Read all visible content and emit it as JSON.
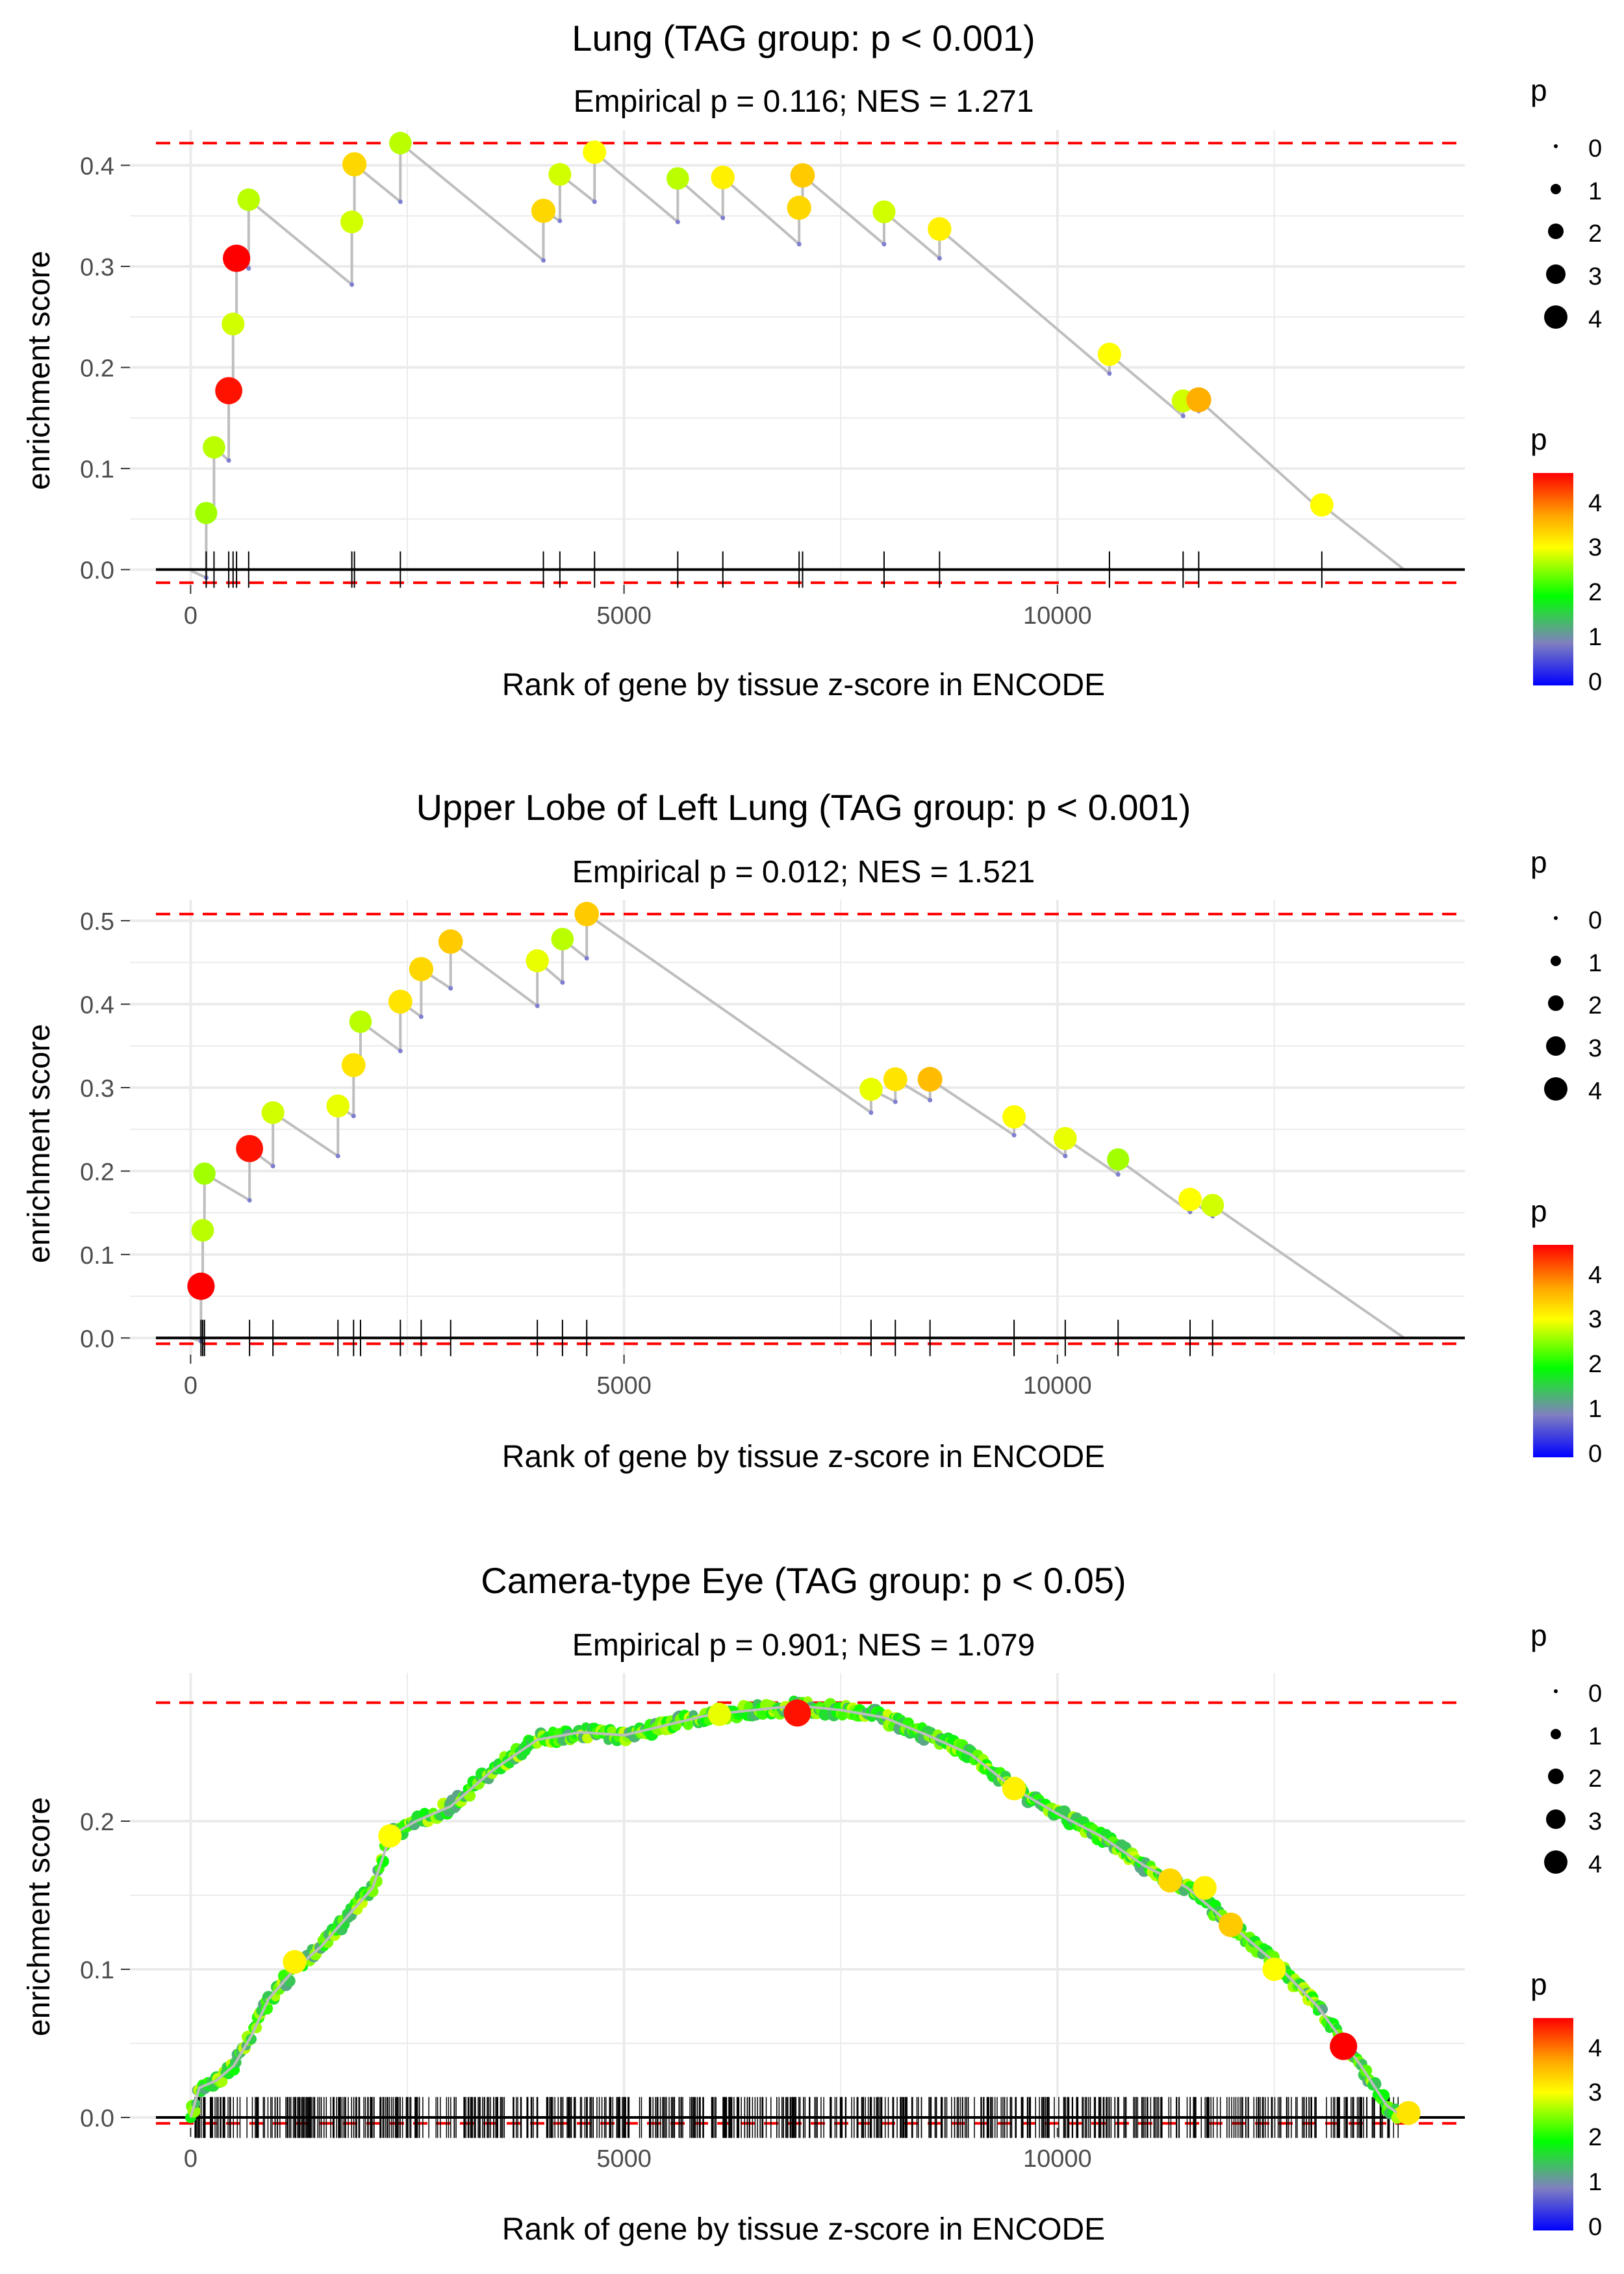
{
  "chart_data": [
    {
      "type": "scatter",
      "title": "Lung (TAG group: p < 0.001)",
      "subtitle": "Empirical p = 0.116; NES = 1.271",
      "xlabel": "Rank of gene by tissue z-score in ENCODE",
      "ylabel": "enrichment score",
      "xlim": [
        -700,
        14700
      ],
      "ylim": [
        -0.015,
        0.435
      ],
      "x_ticks": [
        0,
        5000,
        10000
      ],
      "x_tick_labels": [
        "0",
        "5000",
        "10000"
      ],
      "y_ticks": [
        0.0,
        0.1,
        0.2,
        0.3,
        0.4
      ],
      "y_tick_labels": [
        "0.0",
        "0.1",
        "0.2",
        "0.3",
        "0.4"
      ],
      "max_es": 0.422,
      "min_es": -0.013,
      "n_genes": 14000,
      "start_es": -0.001,
      "steps": [
        {
          "rank": 180,
          "pre": -0.008,
          "es": 0.056,
          "p": 2.6
        },
        {
          "rank": 270,
          "pre": 0.052,
          "es": 0.121,
          "p": 2.7
        },
        {
          "rank": 440,
          "pre": 0.108,
          "es": 0.177,
          "p": 4.5
        },
        {
          "rank": 490,
          "pre": 0.175,
          "es": 0.243,
          "p": 2.8
        },
        {
          "rank": 530,
          "pre": 0.24,
          "es": 0.308,
          "p": 4.6
        },
        {
          "rank": 670,
          "pre": 0.298,
          "es": 0.366,
          "p": 2.7
        },
        {
          "rank": 1860,
          "pre": 0.282,
          "es": 0.344,
          "p": 2.8
        },
        {
          "rank": 1890,
          "pre": 0.34,
          "es": 0.401,
          "p": 3.3
        },
        {
          "rank": 2420,
          "pre": 0.364,
          "es": 0.422,
          "p": 2.7
        },
        {
          "rank": 4070,
          "pre": 0.306,
          "es": 0.355,
          "p": 3.3
        },
        {
          "rank": 4260,
          "pre": 0.345,
          "es": 0.391,
          "p": 2.8
        },
        {
          "rank": 4660,
          "pre": 0.364,
          "es": 0.413,
          "p": 3.0
        },
        {
          "rank": 5620,
          "pre": 0.344,
          "es": 0.387,
          "p": 2.7
        },
        {
          "rank": 6140,
          "pre": 0.348,
          "es": 0.388,
          "p": 3.1
        },
        {
          "rank": 7020,
          "pre": 0.322,
          "es": 0.358,
          "p": 3.3
        },
        {
          "rank": 7060,
          "pre": 0.355,
          "es": 0.39,
          "p": 3.4
        },
        {
          "rank": 8000,
          "pre": 0.322,
          "es": 0.354,
          "p": 2.8
        },
        {
          "rank": 8640,
          "pre": 0.308,
          "es": 0.337,
          "p": 3.1
        },
        {
          "rank": 10600,
          "pre": 0.194,
          "es": 0.213,
          "p": 3.0
        },
        {
          "rank": 11450,
          "pre": 0.152,
          "es": 0.167,
          "p": 2.8
        },
        {
          "rank": 11630,
          "pre": 0.157,
          "es": 0.168,
          "p": 3.6
        },
        {
          "rank": 13050,
          "pre": 0.058,
          "es": 0.064,
          "p": 3.0
        }
      ],
      "gene_ranks": [
        180,
        270,
        440,
        490,
        530,
        670,
        1860,
        1890,
        2420,
        4070,
        4260,
        4660,
        5620,
        6140,
        7020,
        7060,
        8000,
        8640,
        10600,
        11450,
        11630,
        13050
      ],
      "legend_size": {
        "title": "p",
        "values": [
          "0",
          "1",
          "2",
          "3",
          "4"
        ]
      },
      "legend_color": {
        "title": "p",
        "ticks": [
          "0",
          "1",
          "2",
          "3",
          "4"
        ],
        "range": [
          0,
          4.6
        ]
      }
    },
    {
      "type": "scatter",
      "title": "Upper Lobe of Left Lung (TAG group: p < 0.001)",
      "subtitle": "Empirical p = 0.012; NES = 1.521",
      "xlabel": "Rank of gene by tissue z-score in ENCODE",
      "ylabel": "enrichment score",
      "xlim": [
        -700,
        14700
      ],
      "ylim": [
        -0.02,
        0.525
      ],
      "x_ticks": [
        0,
        5000,
        10000
      ],
      "x_tick_labels": [
        "0",
        "5000",
        "10000"
      ],
      "y_ticks": [
        0.0,
        0.1,
        0.2,
        0.3,
        0.4,
        0.5
      ],
      "y_tick_labels": [
        "0.0",
        "0.1",
        "0.2",
        "0.3",
        "0.4",
        "0.5"
      ],
      "max_es": 0.508,
      "min_es": -0.007,
      "n_genes": 14000,
      "start_es": 0.0,
      "steps": [
        {
          "rank": 120,
          "pre": -0.004,
          "es": 0.062,
          "p": 4.6
        },
        {
          "rank": 140,
          "pre": 0.06,
          "es": 0.129,
          "p": 2.7
        },
        {
          "rank": 160,
          "pre": 0.128,
          "es": 0.197,
          "p": 2.6
        },
        {
          "rank": 680,
          "pre": 0.165,
          "es": 0.227,
          "p": 4.5
        },
        {
          "rank": 950,
          "pre": 0.206,
          "es": 0.27,
          "p": 2.8
        },
        {
          "rank": 1700,
          "pre": 0.218,
          "es": 0.278,
          "p": 2.9
        },
        {
          "rank": 1880,
          "pre": 0.266,
          "es": 0.327,
          "p": 3.2
        },
        {
          "rank": 1960,
          "pre": 0.32,
          "es": 0.379,
          "p": 2.7
        },
        {
          "rank": 2420,
          "pre": 0.344,
          "es": 0.403,
          "p": 3.2
        },
        {
          "rank": 2660,
          "pre": 0.385,
          "es": 0.442,
          "p": 3.3
        },
        {
          "rank": 3000,
          "pre": 0.419,
          "es": 0.475,
          "p": 3.4
        },
        {
          "rank": 4000,
          "pre": 0.398,
          "es": 0.452,
          "p": 2.9
        },
        {
          "rank": 4290,
          "pre": 0.426,
          "es": 0.478,
          "p": 2.7
        },
        {
          "rank": 4570,
          "pre": 0.455,
          "es": 0.508,
          "p": 3.4
        },
        {
          "rank": 7850,
          "pre": 0.27,
          "es": 0.298,
          "p": 2.9
        },
        {
          "rank": 8130,
          "pre": 0.283,
          "es": 0.31,
          "p": 3.2
        },
        {
          "rank": 8530,
          "pre": 0.285,
          "es": 0.31,
          "p": 3.5
        },
        {
          "rank": 9500,
          "pre": 0.243,
          "es": 0.265,
          "p": 3.0
        },
        {
          "rank": 10090,
          "pre": 0.218,
          "es": 0.239,
          "p": 2.9
        },
        {
          "rank": 10700,
          "pre": 0.196,
          "es": 0.214,
          "p": 2.6
        },
        {
          "rank": 11530,
          "pre": 0.151,
          "es": 0.166,
          "p": 3.0
        },
        {
          "rank": 11790,
          "pre": 0.146,
          "es": 0.159,
          "p": 2.8
        }
      ],
      "gene_ranks": [
        120,
        140,
        160,
        680,
        950,
        1700,
        1880,
        1960,
        2420,
        2660,
        3000,
        4000,
        4290,
        4570,
        7850,
        8130,
        8530,
        9500,
        10090,
        10700,
        11530,
        11790
      ],
      "legend_size": {
        "title": "p",
        "values": [
          "0",
          "1",
          "2",
          "3",
          "4"
        ]
      },
      "legend_color": {
        "title": "p",
        "ticks": [
          "0",
          "1",
          "2",
          "3",
          "4"
        ],
        "range": [
          0,
          4.6
        ]
      }
    },
    {
      "type": "scatter",
      "title": "Camera-type Eye (TAG group: p < 0.05)",
      "subtitle": "Empirical p = 0.901; NES = 1.079",
      "xlabel": "Rank of gene by tissue z-score in ENCODE",
      "ylabel": "enrichment score",
      "xlim": [
        -700,
        14700
      ],
      "ylim": [
        -0.007,
        0.3
      ],
      "x_ticks": [
        0,
        5000,
        10000
      ],
      "x_tick_labels": [
        "0",
        "5000",
        "10000"
      ],
      "y_ticks": [
        0.0,
        0.1,
        0.2
      ],
      "y_tick_labels": [
        "0.0",
        "0.1",
        "0.2"
      ],
      "max_es": 0.28,
      "min_es": -0.004,
      "n_genes": 14000,
      "curve": {
        "points": [
          [
            0,
            0.0
          ],
          [
            100,
            0.02
          ],
          [
            300,
            0.025
          ],
          [
            500,
            0.035
          ],
          [
            700,
            0.055
          ],
          [
            900,
            0.08
          ],
          [
            1200,
            0.1
          ],
          [
            1500,
            0.115
          ],
          [
            1800,
            0.135
          ],
          [
            2100,
            0.155
          ],
          [
            2300,
            0.19
          ],
          [
            2600,
            0.2
          ],
          [
            3000,
            0.21
          ],
          [
            3500,
            0.235
          ],
          [
            4000,
            0.255
          ],
          [
            4500,
            0.26
          ],
          [
            5000,
            0.258
          ],
          [
            5500,
            0.265
          ],
          [
            6000,
            0.272
          ],
          [
            6500,
            0.275
          ],
          [
            7000,
            0.278
          ],
          [
            7500,
            0.275
          ],
          [
            8000,
            0.27
          ],
          [
            8500,
            0.258
          ],
          [
            9000,
            0.245
          ],
          [
            9500,
            0.222
          ],
          [
            10000,
            0.205
          ],
          [
            10500,
            0.19
          ],
          [
            11000,
            0.17
          ],
          [
            11500,
            0.155
          ],
          [
            12000,
            0.13
          ],
          [
            12500,
            0.105
          ],
          [
            13000,
            0.075
          ],
          [
            13500,
            0.035
          ],
          [
            13800,
            0.008
          ],
          [
            14000,
            0.0
          ]
        ],
        "highlight_points": [
          {
            "rank": 2300,
            "es": 0.19,
            "p": 3.0
          },
          {
            "rank": 1200,
            "es": 0.105,
            "p": 3.1
          },
          {
            "rank": 7000,
            "es": 0.273,
            "p": 4.5
          },
          {
            "rank": 6100,
            "es": 0.272,
            "p": 2.9
          },
          {
            "rank": 9500,
            "es": 0.222,
            "p": 3.1
          },
          {
            "rank": 11300,
            "es": 0.16,
            "p": 3.3
          },
          {
            "rank": 11700,
            "es": 0.155,
            "p": 3.1
          },
          {
            "rank": 12000,
            "es": 0.13,
            "p": 3.4
          },
          {
            "rank": 12500,
            "es": 0.1,
            "p": 3.0
          },
          {
            "rank": 13300,
            "es": 0.048,
            "p": 4.6
          },
          {
            "rank": 14050,
            "es": 0.003,
            "p": 3.2
          }
        ]
      },
      "gene_ranks_note": "dense rug of about 700 gene ticks spanning ranks 0 to 14000",
      "legend_size": {
        "title": "p",
        "values": [
          "0",
          "1",
          "2",
          "3",
          "4"
        ]
      },
      "legend_color": {
        "title": "p",
        "ticks": [
          "0",
          "1",
          "2",
          "3",
          "4"
        ],
        "range": [
          0,
          4.6
        ]
      }
    }
  ],
  "colors": {
    "line": "#bebebe",
    "zero_line": "#000000",
    "dashed_bound": "#ff0000",
    "grid": "#ebebeb",
    "gradient": [
      "#0000ff",
      "#8080c0",
      "#00ff00",
      "#ffff00",
      "#ffa500",
      "#ff0000"
    ]
  }
}
